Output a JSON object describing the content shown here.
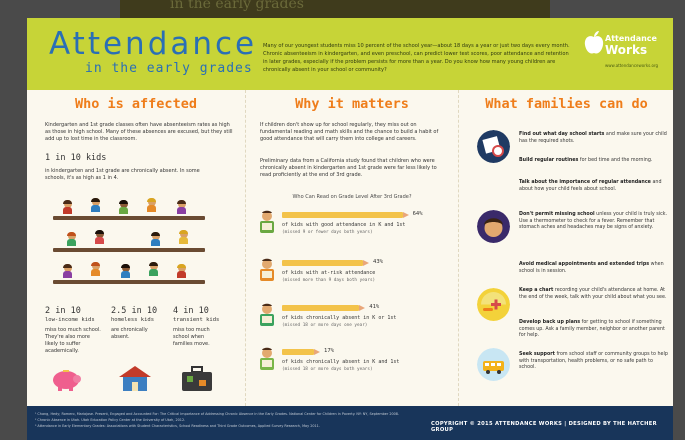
{
  "background_strip": {
    "text": "in the early grades"
  },
  "header": {
    "title": "Attendance",
    "subtitle": "in the early grades",
    "intro": "Many of our youngest students miss 10 percent of the school year—about 18 days a year or just two days every month. Chronic absenteeism in kindergarten, and even preschool, can predict lower test scores, poor attendance and retention in later grades, especially if the problem persists for more than a year. Do you know how many young children are chronically absent in your school or community?",
    "logo_line1": "Attendance",
    "logo_line2": "Works",
    "logo_url": "www.attendanceworks.org"
  },
  "who": {
    "heading": "Who is affected",
    "intro": "Kindergarten and 1st grade classes often have absenteeism rates as high as those in high school. Many of these absences are excused, but they still add up to lost time in the classroom.",
    "stat": "1 in 10 kids",
    "stat_text": "in kindergarten and 1st grade are chronically absent. In some schools, it's as high as 1 in 4.",
    "bottom": [
      {
        "stat": "2 in 10",
        "sub": "low-income kids",
        "text": "miss too much school. They're also more likely to suffer academically."
      },
      {
        "stat": "2.5 in 10",
        "sub": "homeless kids",
        "text": "are chronically absent."
      },
      {
        "stat": "4 in 10",
        "sub": "transient kids",
        "text": "miss too much school when families move."
      }
    ]
  },
  "why": {
    "heading": "Why it matters",
    "para1": "If children don't show up for school regularly, they miss out on fundamental reading and math skills and the chance to build a habit of good attendance that will carry them into college and careers.",
    "para2": "Preliminary data from a California study found that children who were chronically absent in kindergarten and 1st grade were far less likely to read proficiently at the end of 3rd grade.",
    "chart_title": "Who Can Read on Grade Level After 3rd Grade?"
  },
  "chart_data": {
    "type": "bar",
    "title": "Who Can Read on Grade Level After 3rd Grade?",
    "categories": [
      "of kids with good attendance in K and 1st",
      "of kids with at-risk attendance",
      "of kids chronically absent in K or 1st",
      "of kids chronically absent in K and 1st"
    ],
    "notes": [
      "(missed 9 or fewer days both years)",
      "(missed more than 9 days both years)",
      "(missed 18 or more days one year)",
      "(missed 18 or more days both years)"
    ],
    "labels": [
      "64%",
      "43%",
      "41%",
      "17%"
    ],
    "values": [
      64,
      43,
      41,
      17
    ],
    "ylim": [
      0,
      100
    ]
  },
  "families": {
    "heading": "What families can do",
    "tips": [
      {
        "bold": "Find out what day school starts",
        "text": " and make sure your child has the required shots."
      },
      {
        "bold": "Build regular routines",
        "text": " for bed time and the morning."
      },
      {
        "bold": "Talk about the importance of regular attendance",
        "text": " and about how your child feels about school."
      },
      {
        "bold": "Don't permit missing school",
        "text": " unless your child is truly sick. Use a thermometer to check for a fever. Remember that stomach aches and headaches may be signs of anxiety."
      },
      {
        "bold": "Avoid medical appointments and extended trips",
        "text": " when school is in session."
      },
      {
        "bold": "Keep a chart",
        "text": " recording your child's attendance at home. At the end of the week, talk with your child about what you see."
      },
      {
        "bold": "Develop back up plans",
        "text": " for getting to school if something comes up. Ask a family member, neighbor or another parent for help."
      },
      {
        "bold": "Seek support",
        "text": " from school staff or community groups to help with transportation, health problems, or no safe path to school."
      }
    ]
  },
  "footer": {
    "notes": [
      "¹ Chang, Hedy; Romero, Mariajose. Present, Engaged and Accounted For: The Critical Importance of Addressing Chronic Absence in the Early Grades. National Center for Children in Poverty. NY: NY, September 2008.",
      "² Chronic Absence in Utah. Utah Education Policy Center at the University of Utah, 2012.",
      "³ Attendance in Early Elementary Grades: Associations with Student Characteristics, School Readiness and Third Grade Outcomes, Applied Survey Research, May 2011."
    ],
    "copyright": "COPYRIGHT © 2015 ATTENDANCE WORKS | DESIGNED BY THE HATCHER GROUP"
  },
  "colors": {
    "header": "#c7d437",
    "heading": "#ef7d1a",
    "title": "#2a6fb5",
    "footer": "#18355a"
  }
}
